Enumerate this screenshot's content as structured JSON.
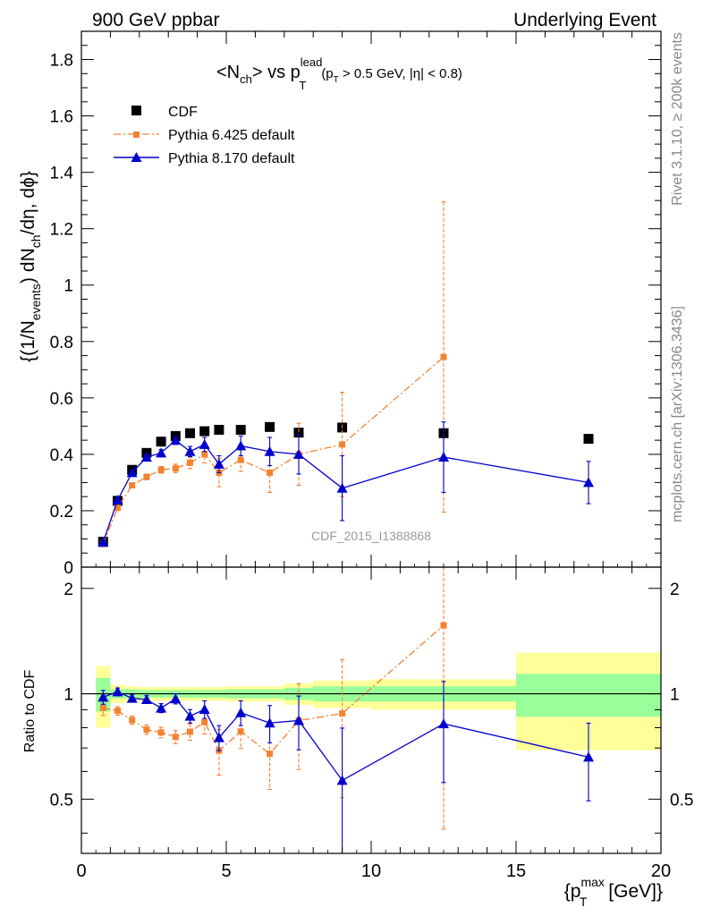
{
  "header": {
    "left": "900 GeV ppbar",
    "right": "Underlying Event"
  },
  "side_labels": {
    "rivet": "Rivet 3.1.10, ≥ 200k events",
    "mcplots": "mcplots.cern.ch [arXiv:1306.3436]"
  },
  "analysis_id": "CDF_2015_I1388868",
  "chart_data": {
    "type": "scatter",
    "title_parts": {
      "main": "<N",
      "main_sub": "ch",
      "mid": "> vs p",
      "mid_sup": "lead",
      "mid_sub": "T",
      "cut_open": "(p",
      "cut_sub": "T",
      "cut_close": " > 0.5 GeV, |η| < 0.8)"
    },
    "ylabel_parts": {
      "a": "{(1/N",
      "a_sub": "events",
      "b": ") dN",
      "b_sub": "ch",
      "c": "/dη, dϕ}"
    },
    "xlabel_parts": {
      "a": "{p",
      "a_sup": "max",
      "a_sub": "T",
      "b": " [GeV]}"
    },
    "ratio_ylabel": "Ratio to CDF",
    "xlim": [
      0,
      20
    ],
    "main_ylim": [
      0,
      1.9
    ],
    "ratio_ylim": [
      0.35,
      2.3
    ],
    "ratio_scale": "log",
    "legend_position": "top-left",
    "x_ticks": [
      "0",
      "5",
      "10",
      "15",
      "20"
    ],
    "x_tick_values": [
      0,
      5,
      10,
      15,
      20
    ],
    "main_y_ticks": [
      "0",
      "0.2",
      "0.4",
      "0.6",
      "0.8",
      "1",
      "1.2",
      "1.4",
      "1.6",
      "1.8"
    ],
    "main_y_tick_values": [
      0,
      0.2,
      0.4,
      0.6,
      0.8,
      1,
      1.2,
      1.4,
      1.6,
      1.8
    ],
    "ratio_y_ticks": [
      "0.5",
      "1",
      "2"
    ],
    "ratio_y_tick_values": [
      0.5,
      1,
      2
    ],
    "series": [
      {
        "name": "CDF",
        "color": "#000000",
        "marker": "square",
        "x": [
          0.75,
          1.25,
          1.75,
          2.25,
          2.75,
          3.25,
          3.75,
          4.25,
          4.75,
          5.5,
          6.5,
          7.5,
          9.0,
          12.5,
          17.5
        ],
        "y": [
          0.09,
          0.235,
          0.345,
          0.405,
          0.445,
          0.465,
          0.475,
          0.482,
          0.487,
          0.487,
          0.497,
          0.477,
          0.495,
          0.475,
          0.455
        ],
        "xerr": [
          0.25,
          0.25,
          0.25,
          0.25,
          0.25,
          0.25,
          0.25,
          0.25,
          0.25,
          0.5,
          0.5,
          0.5,
          1.0,
          2.5,
          2.5
        ],
        "band_stat": [
          0.11,
          0.03,
          0.03,
          0.025,
          0.025,
          0.025,
          0.025,
          0.025,
          0.025,
          0.03,
          0.03,
          0.04,
          0.05,
          0.05,
          0.14
        ],
        "band_total": [
          0.2,
          0.06,
          0.05,
          0.045,
          0.045,
          0.045,
          0.045,
          0.045,
          0.045,
          0.05,
          0.05,
          0.07,
          0.09,
          0.1,
          0.31
        ]
      },
      {
        "name": "Pythia 6.425 default",
        "color": "#f58231",
        "marker": "square-small",
        "line": "dashdot",
        "x": [
          0.75,
          1.25,
          1.75,
          2.25,
          2.75,
          3.25,
          3.75,
          4.25,
          4.75,
          5.5,
          6.5,
          7.5,
          9.0,
          12.5
        ],
        "y": [
          0.082,
          0.21,
          0.29,
          0.32,
          0.345,
          0.35,
          0.37,
          0.4,
          0.335,
          0.38,
          0.335,
          0.4,
          0.435,
          0.745
        ],
        "yerr": [
          0.004,
          0.006,
          0.008,
          0.01,
          0.012,
          0.015,
          0.02,
          0.03,
          0.05,
          0.04,
          0.07,
          0.11,
          0.185,
          0.55
        ]
      },
      {
        "name": "Pythia 8.170 default",
        "color": "#0000cc",
        "marker": "triangle",
        "line": "solid",
        "x": [
          0.75,
          1.25,
          1.75,
          2.25,
          2.75,
          3.25,
          3.75,
          4.25,
          4.75,
          5.5,
          6.5,
          7.5,
          9.0,
          12.5,
          17.5
        ],
        "y": [
          0.088,
          0.238,
          0.335,
          0.39,
          0.405,
          0.45,
          0.41,
          0.435,
          0.365,
          0.43,
          0.41,
          0.4,
          0.28,
          0.39,
          0.3
        ],
        "yerr": [
          0.004,
          0.006,
          0.008,
          0.01,
          0.012,
          0.015,
          0.018,
          0.025,
          0.03,
          0.035,
          0.05,
          0.07,
          0.115,
          0.125,
          0.075
        ]
      }
    ]
  }
}
